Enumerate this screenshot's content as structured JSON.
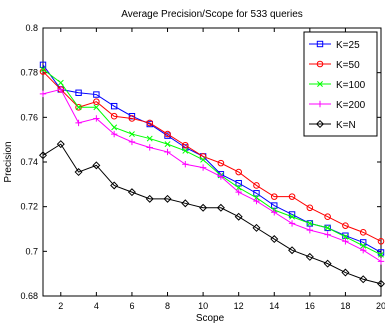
{
  "chart_data": {
    "type": "line",
    "title": "Average Precision/Scope for 533 queries",
    "xlabel": "Scope",
    "ylabel": "Precision",
    "xlim": [
      1,
      20
    ],
    "ylim": [
      0.68,
      0.8
    ],
    "xticks": [
      2,
      4,
      6,
      8,
      10,
      12,
      14,
      16,
      18,
      20
    ],
    "xtick_labels": [
      "2",
      "4",
      "6",
      "8",
      "10",
      "12",
      "14",
      "16",
      "18",
      "20"
    ],
    "yticks": [
      0.68,
      0.7,
      0.72,
      0.74,
      0.76,
      0.78,
      0.8
    ],
    "ytick_labels": [
      "0.68",
      "0.7",
      "0.72",
      "0.74",
      "0.76",
      "0.78",
      "0.8"
    ],
    "grid": false,
    "legend_position": "top-right",
    "x": [
      1,
      2,
      3,
      4,
      5,
      6,
      7,
      8,
      9,
      10,
      11,
      12,
      13,
      14,
      15,
      16,
      17,
      18,
      19,
      20
    ],
    "series": [
      {
        "name": "K=25",
        "color": "#0000ff",
        "marker": "square",
        "values": [
          0.7835,
          0.7725,
          0.771,
          0.7702,
          0.765,
          0.7605,
          0.757,
          0.7518,
          0.7465,
          0.7425,
          0.7345,
          0.7305,
          0.726,
          0.7205,
          0.7165,
          0.7125,
          0.7105,
          0.707,
          0.704,
          0.6995
        ]
      },
      {
        "name": "K=50",
        "color": "#ff0000",
        "marker": "circle",
        "values": [
          0.7805,
          0.7725,
          0.7645,
          0.767,
          0.7605,
          0.7595,
          0.7575,
          0.7525,
          0.7475,
          0.7425,
          0.7395,
          0.7355,
          0.7295,
          0.7245,
          0.7245,
          0.7195,
          0.7155,
          0.7115,
          0.7085,
          0.7045
        ]
      },
      {
        "name": "K=100",
        "color": "#00ff00",
        "marker": "x",
        "values": [
          0.7815,
          0.7755,
          0.7645,
          0.7645,
          0.7555,
          0.7525,
          0.7505,
          0.748,
          0.745,
          0.741,
          0.734,
          0.7285,
          0.724,
          0.7185,
          0.7155,
          0.7125,
          0.7105,
          0.7065,
          0.7025,
          0.6985
        ]
      },
      {
        "name": "K=200",
        "color": "#ff00ff",
        "marker": "plus",
        "values": [
          0.7705,
          0.7725,
          0.7575,
          0.7595,
          0.7525,
          0.749,
          0.7465,
          0.7445,
          0.739,
          0.7375,
          0.7335,
          0.7265,
          0.7225,
          0.7175,
          0.7125,
          0.7095,
          0.7075,
          0.7045,
          0.7005,
          0.6955
        ]
      },
      {
        "name": "K=N",
        "color": "#000000",
        "marker": "diamond",
        "values": [
          0.743,
          0.748,
          0.7355,
          0.7385,
          0.7295,
          0.7265,
          0.7235,
          0.7235,
          0.7215,
          0.7195,
          0.7195,
          0.7155,
          0.7105,
          0.7055,
          0.7005,
          0.6975,
          0.6945,
          0.6905,
          0.6875,
          0.6855
        ]
      }
    ]
  }
}
